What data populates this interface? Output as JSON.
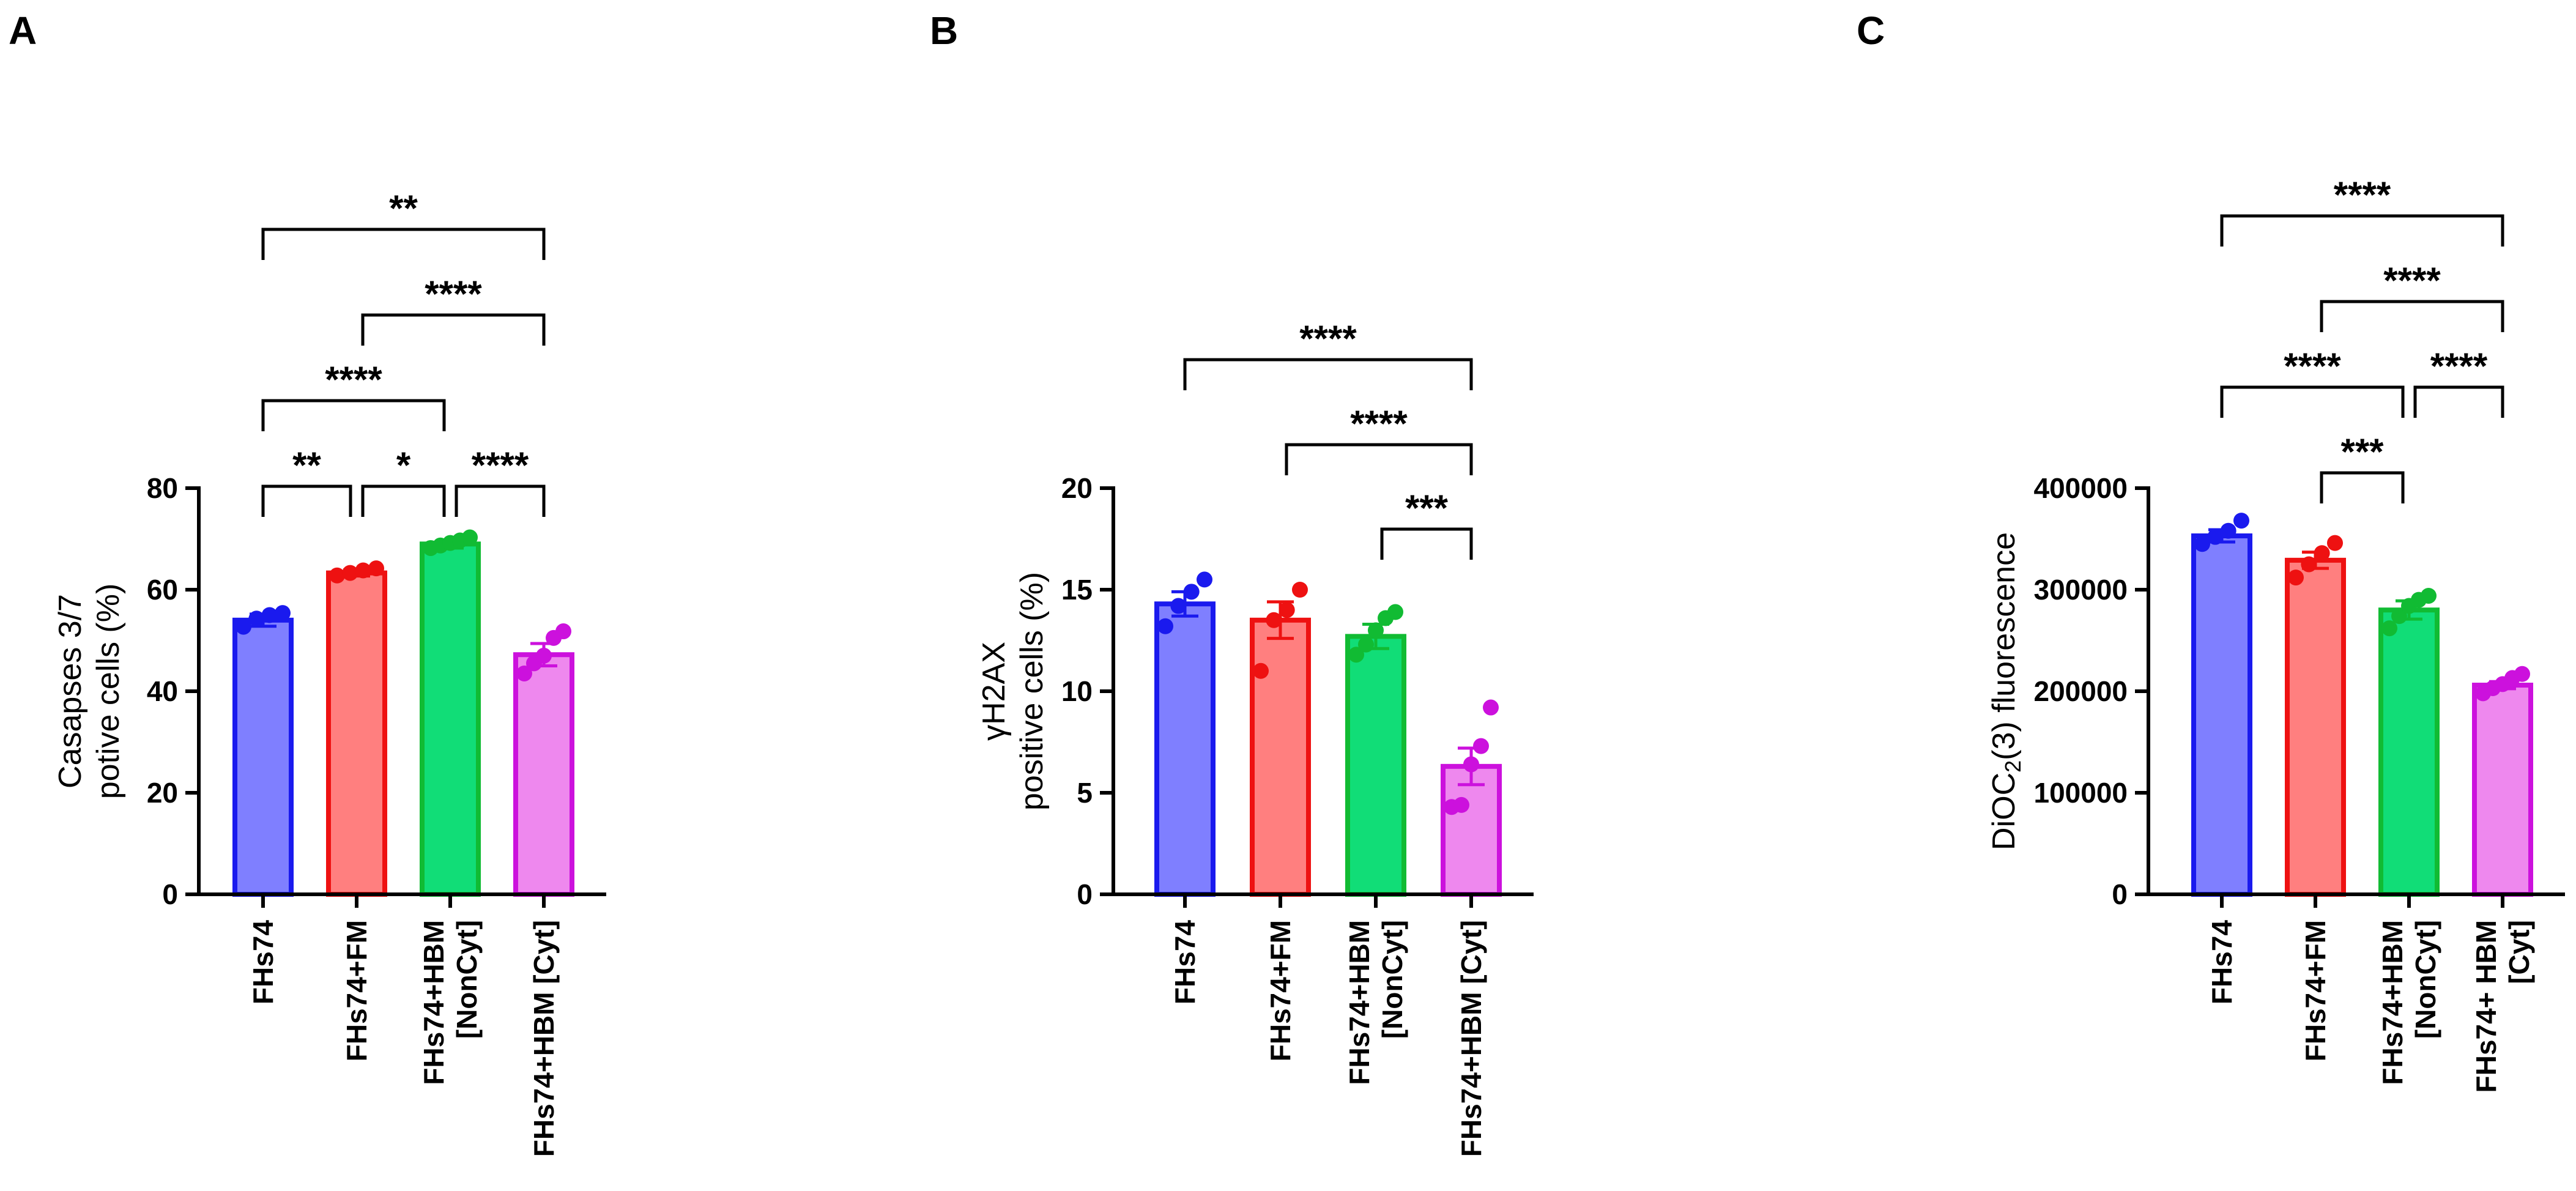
{
  "figure": {
    "panels": [
      "A",
      "B",
      "C"
    ]
  },
  "chart_data": [
    {
      "panel": "A",
      "type": "bar",
      "ylabel": [
        "Casapses 3/7",
        "potive cells (%)"
      ],
      "ylim": [
        0,
        80
      ],
      "yticks": [
        0,
        20,
        40,
        60,
        80
      ],
      "ytick_labels": [
        "0",
        "20",
        "40",
        "60",
        "80"
      ],
      "categories": [
        [
          "FHs74"
        ],
        [
          "FHs74+FM"
        ],
        [
          "FHs74+HBM",
          "[NonCyt]"
        ],
        [
          "FHs74+HBM [Cyt]"
        ]
      ],
      "values": [
        54,
        63.3,
        69,
        47.2
      ],
      "errors": [
        1.2,
        0.6,
        0.8,
        2.2
      ],
      "colors": [
        "#7f7fff",
        "#ff7f7f",
        "#11dd77",
        "#ee88ee"
      ],
      "edge_colors": [
        "#1a1aee",
        "#ee1111",
        "#11bb33",
        "#cc11dd"
      ],
      "points": [
        [
          52.7,
          54.3,
          55.0,
          55.4
        ],
        [
          62.8,
          63.3,
          63.8,
          64.2
        ],
        [
          68.2,
          68.7,
          69.2,
          69.7,
          70.3
        ],
        [
          43.5,
          45.5,
          47.0,
          50.5,
          51.8
        ]
      ],
      "comparisons": [
        {
          "from": 0,
          "to": 1,
          "label": "**"
        },
        {
          "from": 1,
          "to": 2,
          "label": "*"
        },
        {
          "from": 2,
          "to": 3,
          "label": "****"
        },
        {
          "from": 0,
          "to": 2,
          "label": "****"
        },
        {
          "from": 1,
          "to": 3,
          "label": "****"
        },
        {
          "from": 0,
          "to": 3,
          "label": "**"
        }
      ]
    },
    {
      "panel": "B",
      "type": "bar",
      "ylabel": [
        "γH2AX",
        "positive cells (%)"
      ],
      "ylim": [
        0,
        20
      ],
      "yticks": [
        0,
        5,
        10,
        15,
        20
      ],
      "ytick_labels": [
        "0",
        "5",
        "10",
        "15",
        "20"
      ],
      "categories": [
        [
          "FHs74"
        ],
        [
          "FHs74+FM"
        ],
        [
          "FHs74+HBM",
          "[NonCyt]"
        ],
        [
          "FHs74+HBM [Cyt]"
        ]
      ],
      "values": [
        14.3,
        13.5,
        12.7,
        6.3
      ],
      "errors": [
        0.6,
        0.9,
        0.6,
        0.9
      ],
      "colors": [
        "#7f7fff",
        "#ff7f7f",
        "#11dd77",
        "#ee88ee"
      ],
      "edge_colors": [
        "#1a1aee",
        "#ee1111",
        "#11bb33",
        "#cc11dd"
      ],
      "points": [
        [
          13.2,
          14.2,
          14.9,
          15.5
        ],
        [
          11.0,
          13.5,
          14.0,
          15.0
        ],
        [
          11.8,
          12.3,
          13.0,
          13.6,
          13.9
        ],
        [
          4.3,
          4.4,
          6.4,
          7.3,
          9.2
        ]
      ],
      "comparisons": [
        {
          "from": 2,
          "to": 3,
          "label": "***"
        },
        {
          "from": 1,
          "to": 3,
          "label": "****"
        },
        {
          "from": 0,
          "to": 3,
          "label": "****"
        }
      ]
    },
    {
      "panel": "C",
      "type": "bar",
      "ylabel": [
        "DiOC2(3) fluorescence"
      ],
      "ylim": [
        0,
        400000
      ],
      "yticks": [
        0,
        100000,
        200000,
        300000,
        400000
      ],
      "ytick_labels": [
        "0",
        "100000",
        "200000",
        "300000",
        "400000"
      ],
      "categories": [
        [
          "FHs74"
        ],
        [
          "FHs74+FM"
        ],
        [
          "FHs74+HBM",
          "[NonCyt]"
        ],
        [
          "FHs74+ HBM",
          "[Cyt]"
        ]
      ],
      "values": [
        353000,
        329000,
        280000,
        206000
      ],
      "errors": [
        6000,
        8000,
        9000,
        3500
      ],
      "colors": [
        "#7f7fff",
        "#ff7f7f",
        "#11dd77",
        "#ee88ee"
      ],
      "edge_colors": [
        "#1a1aee",
        "#ee1111",
        "#11bb33",
        "#cc11dd"
      ],
      "points": [
        [
          345000,
          352000,
          358000,
          368000
        ],
        [
          312000,
          325000,
          336000,
          346000
        ],
        [
          262000,
          274000,
          284000,
          290000,
          294000
        ],
        [
          198000,
          203000,
          207000,
          213000,
          217000
        ]
      ],
      "comparisons": [
        {
          "from": 1,
          "to": 2,
          "label": "***"
        },
        {
          "from": 0,
          "to": 2,
          "label": "****"
        },
        {
          "from": 2,
          "to": 3,
          "label": "****"
        },
        {
          "from": 1,
          "to": 3,
          "label": "****"
        },
        {
          "from": 0,
          "to": 3,
          "label": "****"
        }
      ]
    }
  ]
}
